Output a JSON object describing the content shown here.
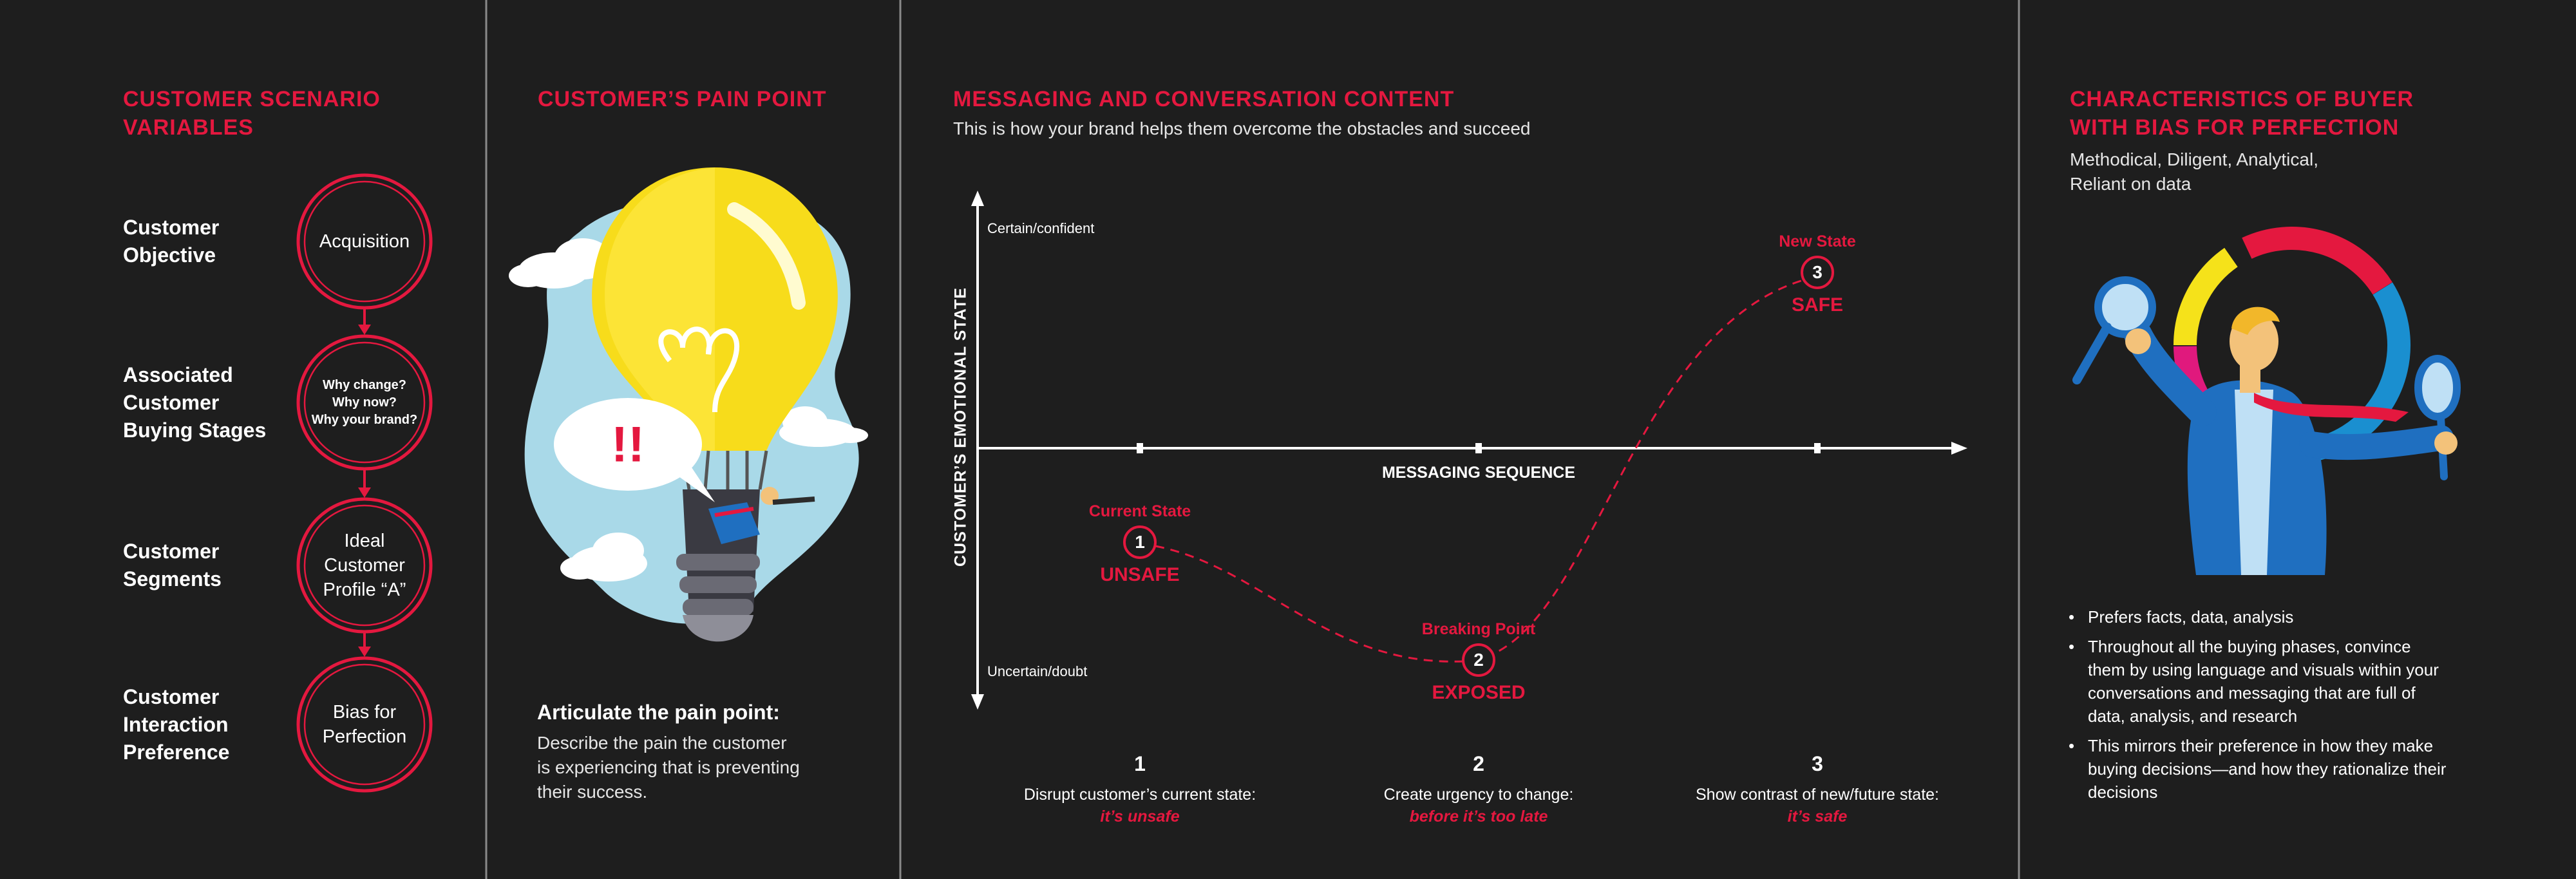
{
  "variables": {
    "title": [
      "CUSTOMER SCENARIO",
      "VARIABLES"
    ],
    "rows": [
      {
        "label": [
          "Customer",
          "Objective"
        ],
        "value": [
          "Acquisition"
        ]
      },
      {
        "label": [
          "Associated",
          "Customer",
          "Buying Stages"
        ],
        "value": [
          "Why change?",
          "Why now?",
          "Why your brand?"
        ]
      },
      {
        "label": [
          "Customer",
          "Segments"
        ],
        "value": [
          "Ideal",
          "Customer",
          "Profile “A”"
        ]
      },
      {
        "label": [
          "Customer",
          "Interaction",
          "Preference"
        ],
        "value": [
          "Bias for",
          "Perfection"
        ]
      }
    ]
  },
  "pain_point": {
    "title": "CUSTOMER’S PAIN POINT",
    "exclamation": "!!",
    "heading": "Articulate the pain point:",
    "text": [
      "Describe the pain the customer",
      "is experiencing that is preventing",
      "their success."
    ]
  },
  "messaging": {
    "title": "MESSAGING AND CONVERSATION CONTENT",
    "subtitle": "This is how your brand helps them overcome the obstacles and succeed",
    "y_axis_label": "CUSTOMER’S EMOTIONAL STATE",
    "y_top": "Certain/confident",
    "y_bottom": "Uncertain/doubt",
    "x_axis_label": "MESSAGING SEQUENCE",
    "states": [
      {
        "label": "Current State",
        "number": "1",
        "status": "UNSAFE"
      },
      {
        "label": "Breaking Point",
        "number": "2",
        "status": "EXPOSED"
      },
      {
        "label": "New State",
        "number": "3",
        "status": "SAFE"
      }
    ],
    "steps": [
      {
        "number": "1",
        "text": "Disrupt customer’s current state:",
        "emphasis": "it’s unsafe"
      },
      {
        "number": "2",
        "text": "Create urgency to change:",
        "emphasis": "before it’s too late"
      },
      {
        "number": "3",
        "text": "Show contrast of new/future state:",
        "emphasis": "it’s safe"
      }
    ]
  },
  "buyer": {
    "title": [
      "CHARACTERISTICS OF BUYER",
      "WITH BIAS FOR PERFECTION"
    ],
    "subtitle": [
      "Methodical, Diligent, Analytical,",
      "Reliant on data"
    ],
    "bullets": [
      "Prefers facts, data, analysis",
      "Throughout all the buying phases, convince them by using language and visuals within your conversations and messaging that are full of data, analysis, and research",
      "This mirrors their preference in how they make buying decisions—and how they rationalize their decisions"
    ]
  }
}
